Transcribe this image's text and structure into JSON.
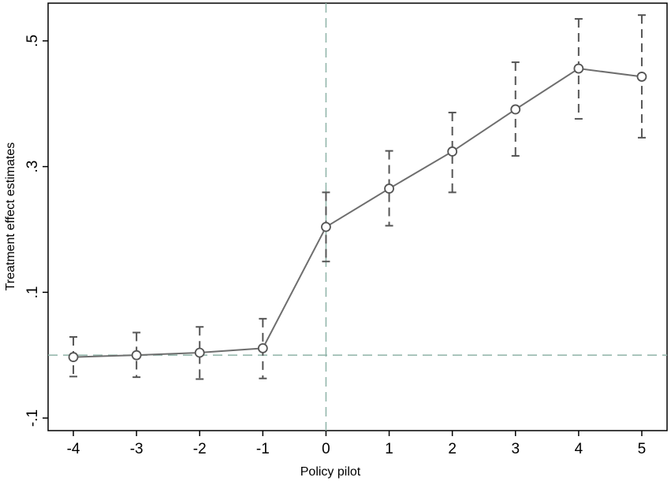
{
  "chart_data": {
    "type": "line",
    "title": "",
    "xlabel": "Policy pilot",
    "ylabel": "Treatment effect estimates",
    "x": [
      -4,
      -3,
      -2,
      -1,
      0,
      1,
      2,
      3,
      4,
      5
    ],
    "series": [
      {
        "values": [
          -0.003,
          0.0,
          0.004,
          0.011,
          0.204,
          0.265,
          0.324,
          0.391,
          0.456,
          0.443
        ],
        "ci_lower": [
          -0.034,
          -0.035,
          -0.038,
          -0.037,
          0.149,
          0.206,
          0.259,
          0.317,
          0.376,
          0.346
        ],
        "ci_upper": [
          0.029,
          0.036,
          0.045,
          0.058,
          0.259,
          0.325,
          0.386,
          0.466,
          0.535,
          0.541
        ]
      }
    ],
    "xlim": [
      -4.4,
      5.4
    ],
    "ylim": [
      -0.12,
      0.56
    ],
    "x_ticks": [
      "-4",
      "-3",
      "-2",
      "-1",
      "0",
      "1",
      "2",
      "3",
      "4",
      "5"
    ],
    "y_ticks": [
      "-.1",
      ".1",
      ".3",
      ".5"
    ],
    "y_tick_values": [
      -0.1,
      0.1,
      0.3,
      0.5
    ],
    "reference_lines": {
      "x": 0,
      "y": 0
    },
    "grid": false,
    "colors": {
      "line": "#6e6e6e",
      "ci": "#555555",
      "reference": "#8fb3a8",
      "frame": "#000000"
    }
  }
}
